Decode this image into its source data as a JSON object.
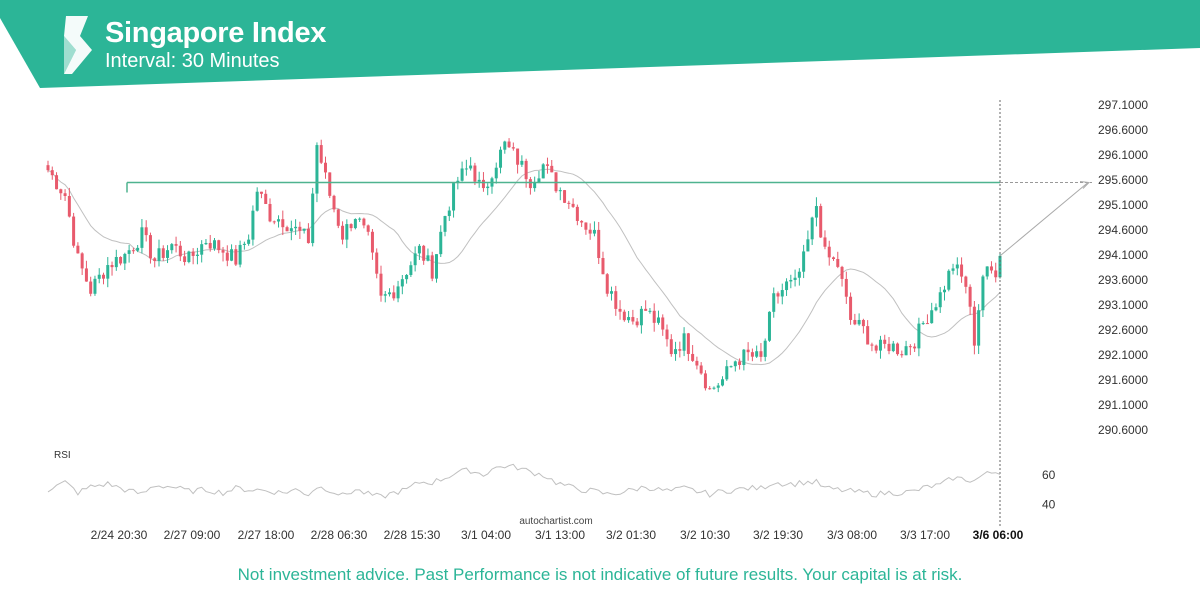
{
  "header": {
    "title": "Singapore Index",
    "subtitle": "Interval: 30 Minutes"
  },
  "colors": {
    "brand": "#2cb597",
    "bull": "#2cb597",
    "bear": "#e85a6c",
    "level_line": "#4fb38f",
    "ma_line": "#c0c0c0",
    "rsi_line": "#c0c0c0"
  },
  "watermark": "autochartist.com",
  "disclaimer": "Not investment advice. Past Performance is not indicative of future results. Your capital is at risk.",
  "chart_data": {
    "type": "candlestick",
    "y_ticks": [
      "297.1000",
      "296.6000",
      "296.1000",
      "295.6000",
      "295.1000",
      "294.6000",
      "294.1000",
      "293.6000",
      "293.1000",
      "292.6000",
      "292.1000",
      "291.6000",
      "291.1000",
      "290.6000"
    ],
    "ylim": [
      290.4,
      297.2
    ],
    "x_ticks": [
      "2/24 20:30",
      "2/27 09:00",
      "2/27 18:00",
      "2/28 06:30",
      "2/28 15:30",
      "3/1 04:00",
      "3/1 13:00",
      "3/2 01:30",
      "3/2 10:30",
      "3/2 19:30",
      "3/3 08:00",
      "3/3 17:00",
      "3/6 06:00"
    ],
    "highlighted_x_tick": "3/6 06:00",
    "resistance_level": 295.55,
    "forecast_target": 295.55,
    "anchor_closes": [
      [
        0,
        295.8
      ],
      [
        4,
        295.3
      ],
      [
        7,
        294.0
      ],
      [
        10,
        293.4
      ],
      [
        14,
        293.9
      ],
      [
        18,
        294.1
      ],
      [
        22,
        294.5
      ],
      [
        25,
        294.0
      ],
      [
        29,
        294.3
      ],
      [
        33,
        294.0
      ],
      [
        37,
        294.4
      ],
      [
        41,
        294.2
      ],
      [
        44,
        294.0
      ],
      [
        47,
        294.5
      ],
      [
        49,
        295.4
      ],
      [
        52,
        294.9
      ],
      [
        55,
        294.8
      ],
      [
        58,
        294.6
      ],
      [
        61,
        294.4
      ],
      [
        63,
        296.3
      ],
      [
        66,
        295.3
      ],
      [
        69,
        294.5
      ],
      [
        72,
        294.9
      ],
      [
        75,
        294.4
      ],
      [
        78,
        293.2
      ],
      [
        81,
        293.4
      ],
      [
        84,
        293.8
      ],
      [
        87,
        294.2
      ],
      [
        90,
        293.8
      ],
      [
        93,
        294.9
      ],
      [
        96,
        295.6
      ],
      [
        99,
        295.9
      ],
      [
        102,
        295.3
      ],
      [
        104,
        295.8
      ],
      [
        107,
        296.3
      ],
      [
        110,
        296.0
      ],
      [
        113,
        295.6
      ],
      [
        116,
        295.9
      ],
      [
        119,
        295.5
      ],
      [
        122,
        295.2
      ],
      [
        125,
        294.8
      ],
      [
        128,
        294.5
      ],
      [
        131,
        293.5
      ],
      [
        134,
        293.0
      ],
      [
        137,
        292.8
      ],
      [
        140,
        293.0
      ],
      [
        143,
        292.7
      ],
      [
        146,
        292.2
      ],
      [
        149,
        292.4
      ],
      [
        152,
        292.0
      ],
      [
        155,
        291.4
      ],
      [
        158,
        291.6
      ],
      [
        161,
        292.0
      ],
      [
        164,
        292.1
      ],
      [
        167,
        292.0
      ],
      [
        170,
        293.2
      ],
      [
        173,
        293.5
      ],
      [
        175,
        293.5
      ],
      [
        177,
        294.0
      ],
      [
        180,
        295.1
      ],
      [
        182,
        294.1
      ],
      [
        185,
        293.9
      ],
      [
        188,
        292.8
      ],
      [
        191,
        292.6
      ],
      [
        194,
        292.2
      ],
      [
        197,
        292.3
      ],
      [
        200,
        292.2
      ],
      [
        203,
        292.4
      ],
      [
        206,
        292.9
      ],
      [
        209,
        293.3
      ],
      [
        212,
        293.9
      ],
      [
        215,
        293.5
      ],
      [
        217,
        292.4
      ],
      [
        219,
        293.7
      ],
      [
        222,
        293.8
      ],
      [
        223,
        294.2
      ]
    ],
    "candle_count": 224,
    "rsi": {
      "label": "RSI",
      "y_ticks": [
        "60",
        "40"
      ],
      "ylim": [
        35,
        70
      ],
      "anchor_values": [
        [
          0,
          50
        ],
        [
          4,
          55
        ],
        [
          7,
          48
        ],
        [
          10,
          52
        ],
        [
          14,
          54
        ],
        [
          18,
          50
        ],
        [
          22,
          47
        ],
        [
          25,
          53
        ],
        [
          29,
          52
        ],
        [
          33,
          49
        ],
        [
          37,
          50
        ],
        [
          41,
          48
        ],
        [
          44,
          51
        ],
        [
          47,
          50
        ],
        [
          49,
          50
        ],
        [
          52,
          49
        ],
        [
          55,
          48
        ],
        [
          58,
          50
        ],
        [
          61,
          47
        ],
        [
          63,
          52
        ],
        [
          66,
          50
        ],
        [
          69,
          46
        ],
        [
          72,
          50
        ],
        [
          75,
          47
        ],
        [
          78,
          45
        ],
        [
          81,
          48
        ],
        [
          84,
          50
        ],
        [
          87,
          55
        ],
        [
          90,
          55
        ],
        [
          93,
          58
        ],
        [
          96,
          62
        ],
        [
          99,
          63
        ],
        [
          102,
          60
        ],
        [
          104,
          64
        ],
        [
          107,
          66
        ],
        [
          110,
          65
        ],
        [
          113,
          62
        ],
        [
          116,
          60
        ],
        [
          119,
          55
        ],
        [
          122,
          52
        ],
        [
          125,
          50
        ],
        [
          128,
          49
        ],
        [
          131,
          47
        ],
        [
          134,
          48
        ],
        [
          137,
          50
        ],
        [
          140,
          52
        ],
        [
          143,
          50
        ],
        [
          146,
          49
        ],
        [
          149,
          51
        ],
        [
          152,
          49
        ],
        [
          155,
          47
        ],
        [
          158,
          49
        ],
        [
          161,
          50
        ],
        [
          164,
          51
        ],
        [
          167,
          51
        ],
        [
          170,
          55
        ],
        [
          173,
          54
        ],
        [
          175,
          54
        ],
        [
          177,
          55
        ],
        [
          180,
          55
        ],
        [
          182,
          51
        ],
        [
          185,
          50
        ],
        [
          188,
          49
        ],
        [
          191,
          48
        ],
        [
          194,
          47
        ],
        [
          197,
          48
        ],
        [
          200,
          48
        ],
        [
          203,
          49
        ],
        [
          206,
          52
        ],
        [
          209,
          53
        ],
        [
          212,
          58
        ],
        [
          215,
          57
        ],
        [
          217,
          56
        ],
        [
          219,
          60
        ],
        [
          222,
          62
        ],
        [
          223,
          62
        ]
      ]
    }
  }
}
